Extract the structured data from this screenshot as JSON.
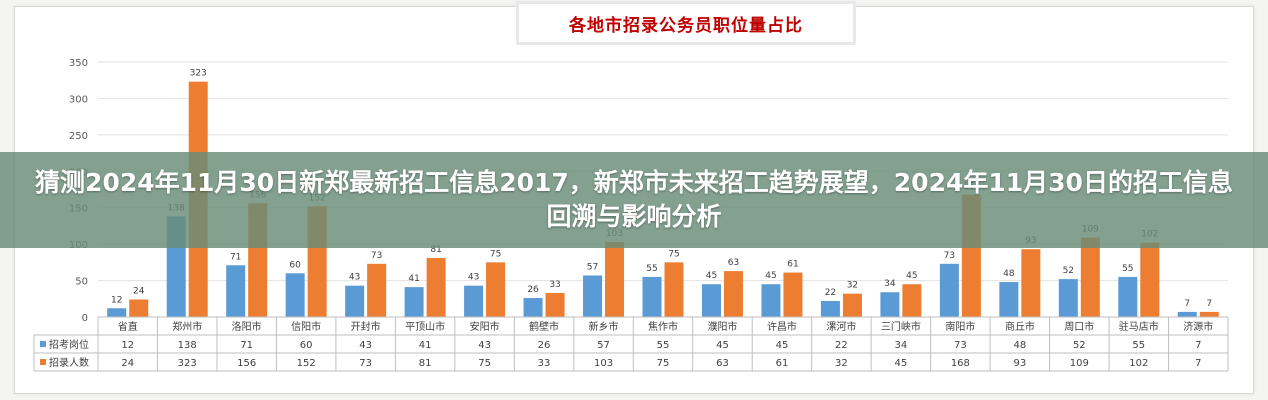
{
  "overlay": {
    "headline": "猜测2024年11月30日新郑最新招工信息2017，新郑市未来招工趋势展望，2024年11月30日的招工信息回溯与影响分析"
  },
  "chart_data": {
    "type": "bar",
    "title": "各地市招录公务员职位量占比",
    "categories": [
      "省直",
      "郑州市",
      "洛阳市",
      "信阳市",
      "开封市",
      "平顶山市",
      "安阳市",
      "鹤壁市",
      "新乡市",
      "焦作市",
      "濮阳市",
      "许昌市",
      "漯河市",
      "三门峡市",
      "南阳市",
      "商丘市",
      "周口市",
      "驻马店市",
      "济源市"
    ],
    "series": [
      {
        "name": "招考岗位",
        "color": "#5b9bd5",
        "values": [
          12,
          138,
          71,
          60,
          43,
          41,
          43,
          26,
          57,
          55,
          45,
          45,
          22,
          34,
          73,
          48,
          52,
          55,
          7
        ]
      },
      {
        "name": "招录人数",
        "color": "#ed7d31",
        "values": [
          24,
          323,
          156,
          152,
          73,
          81,
          75,
          33,
          103,
          75,
          63,
          61,
          32,
          45,
          168,
          93,
          109,
          102,
          7
        ]
      }
    ],
    "ylim": [
      0,
      350
    ],
    "yticks": [
      0,
      50,
      100,
      150,
      200,
      250,
      300,
      350
    ],
    "grid": true,
    "legend": "data-table-below"
  }
}
